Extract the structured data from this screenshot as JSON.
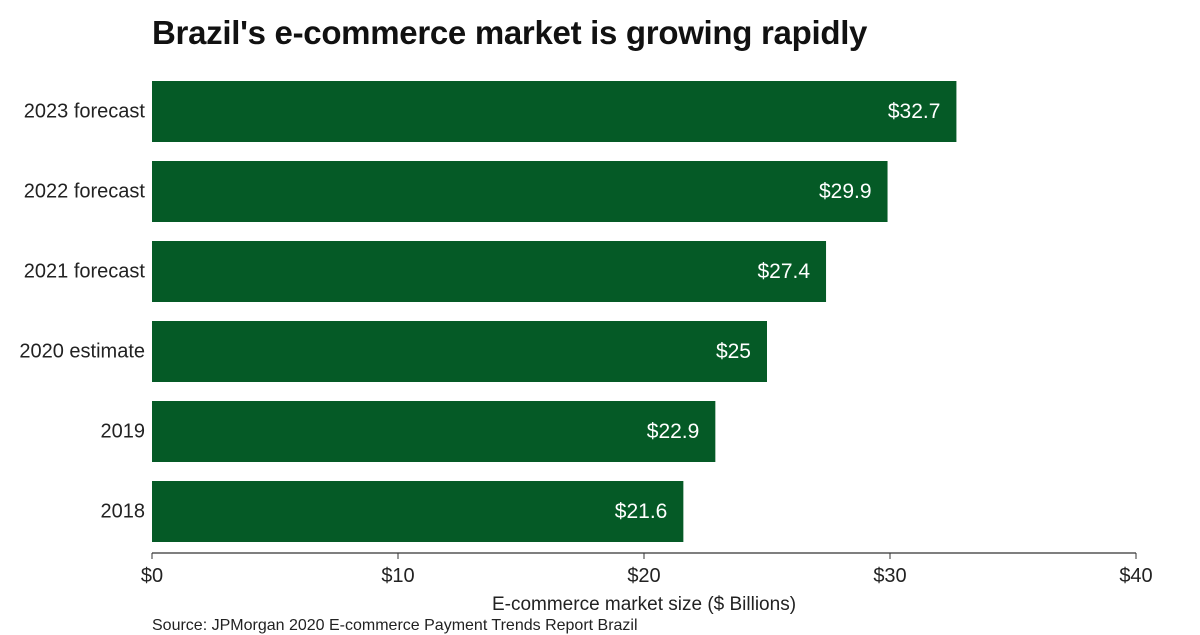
{
  "chart_data": {
    "type": "bar",
    "orientation": "horizontal",
    "title": "Brazil's e-commerce market is growing rapidly",
    "categories": [
      "2023 forecast",
      "2022 forecast",
      "2021 forecast",
      "2020 estimate",
      "2019",
      "2018"
    ],
    "values": [
      32.7,
      29.9,
      27.4,
      25,
      22.9,
      21.6
    ],
    "value_labels": [
      "$32.7",
      "$29.9",
      "$27.4",
      "$25",
      "$22.9",
      "$21.6"
    ],
    "xlabel": "E-commerce market size ($ Billions)",
    "ylabel": "",
    "xlim": [
      0,
      40
    ],
    "x_ticks": [
      0,
      10,
      20,
      30,
      40
    ],
    "x_tick_labels": [
      "$0",
      "$10",
      "$20",
      "$30",
      "$40"
    ],
    "grid": false,
    "bar_color": "#055a26",
    "source": "Source: JPMorgan 2020 E-commerce Payment Trends Report Brazil"
  }
}
